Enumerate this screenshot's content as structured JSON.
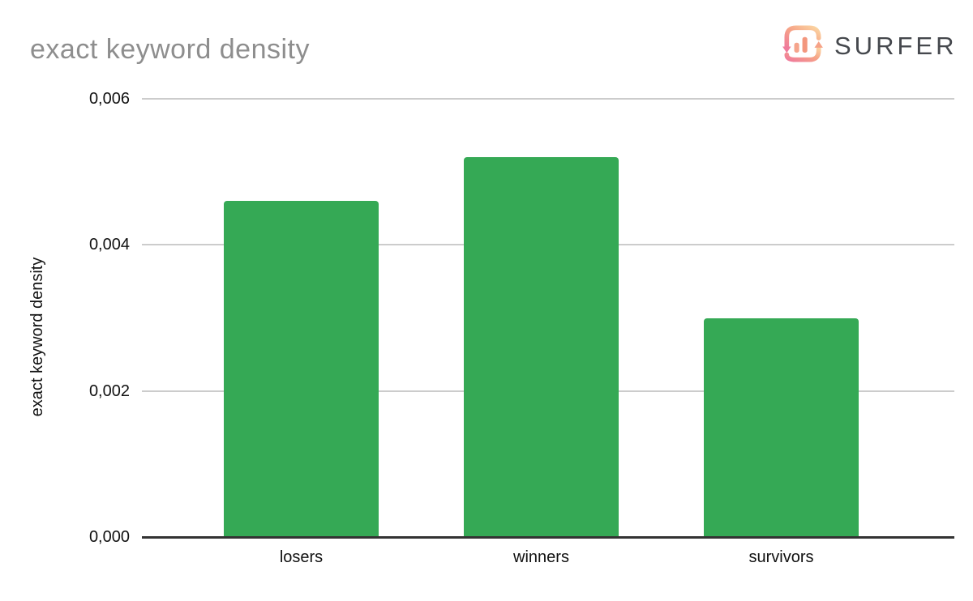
{
  "header": {
    "title": "exact keyword density",
    "logo": {
      "brand": "SURFER",
      "icon": "surfer-refresh-bars-icon"
    }
  },
  "chart_data": {
    "type": "bar",
    "title": "exact keyword density",
    "categories": [
      "losers",
      "winners",
      "survivors"
    ],
    "values": [
      0.0046,
      0.0052,
      0.003
    ],
    "xlabel": "",
    "ylabel": "exact keyword density",
    "ylim": [
      0,
      0.006
    ],
    "yticks": [
      0,
      0.002,
      0.004,
      0.006
    ],
    "ytick_labels": [
      "0,000",
      "0,002",
      "0,004",
      "0,006"
    ],
    "decimal_separator": ",",
    "grid": true,
    "legend": false,
    "bar_color": "#35a955"
  },
  "colors": {
    "bar_green": "#35a955",
    "gridline_gray": "#cccccc",
    "axis_dark": "#333333",
    "title_gray": "#8e8e8e",
    "tick_text": "#111111",
    "logo_text": "#45484d",
    "logo_gradient_start": "#fbd6a2",
    "logo_gradient_mid": "#f6a287",
    "logo_gradient_end": "#ef7b9b"
  }
}
